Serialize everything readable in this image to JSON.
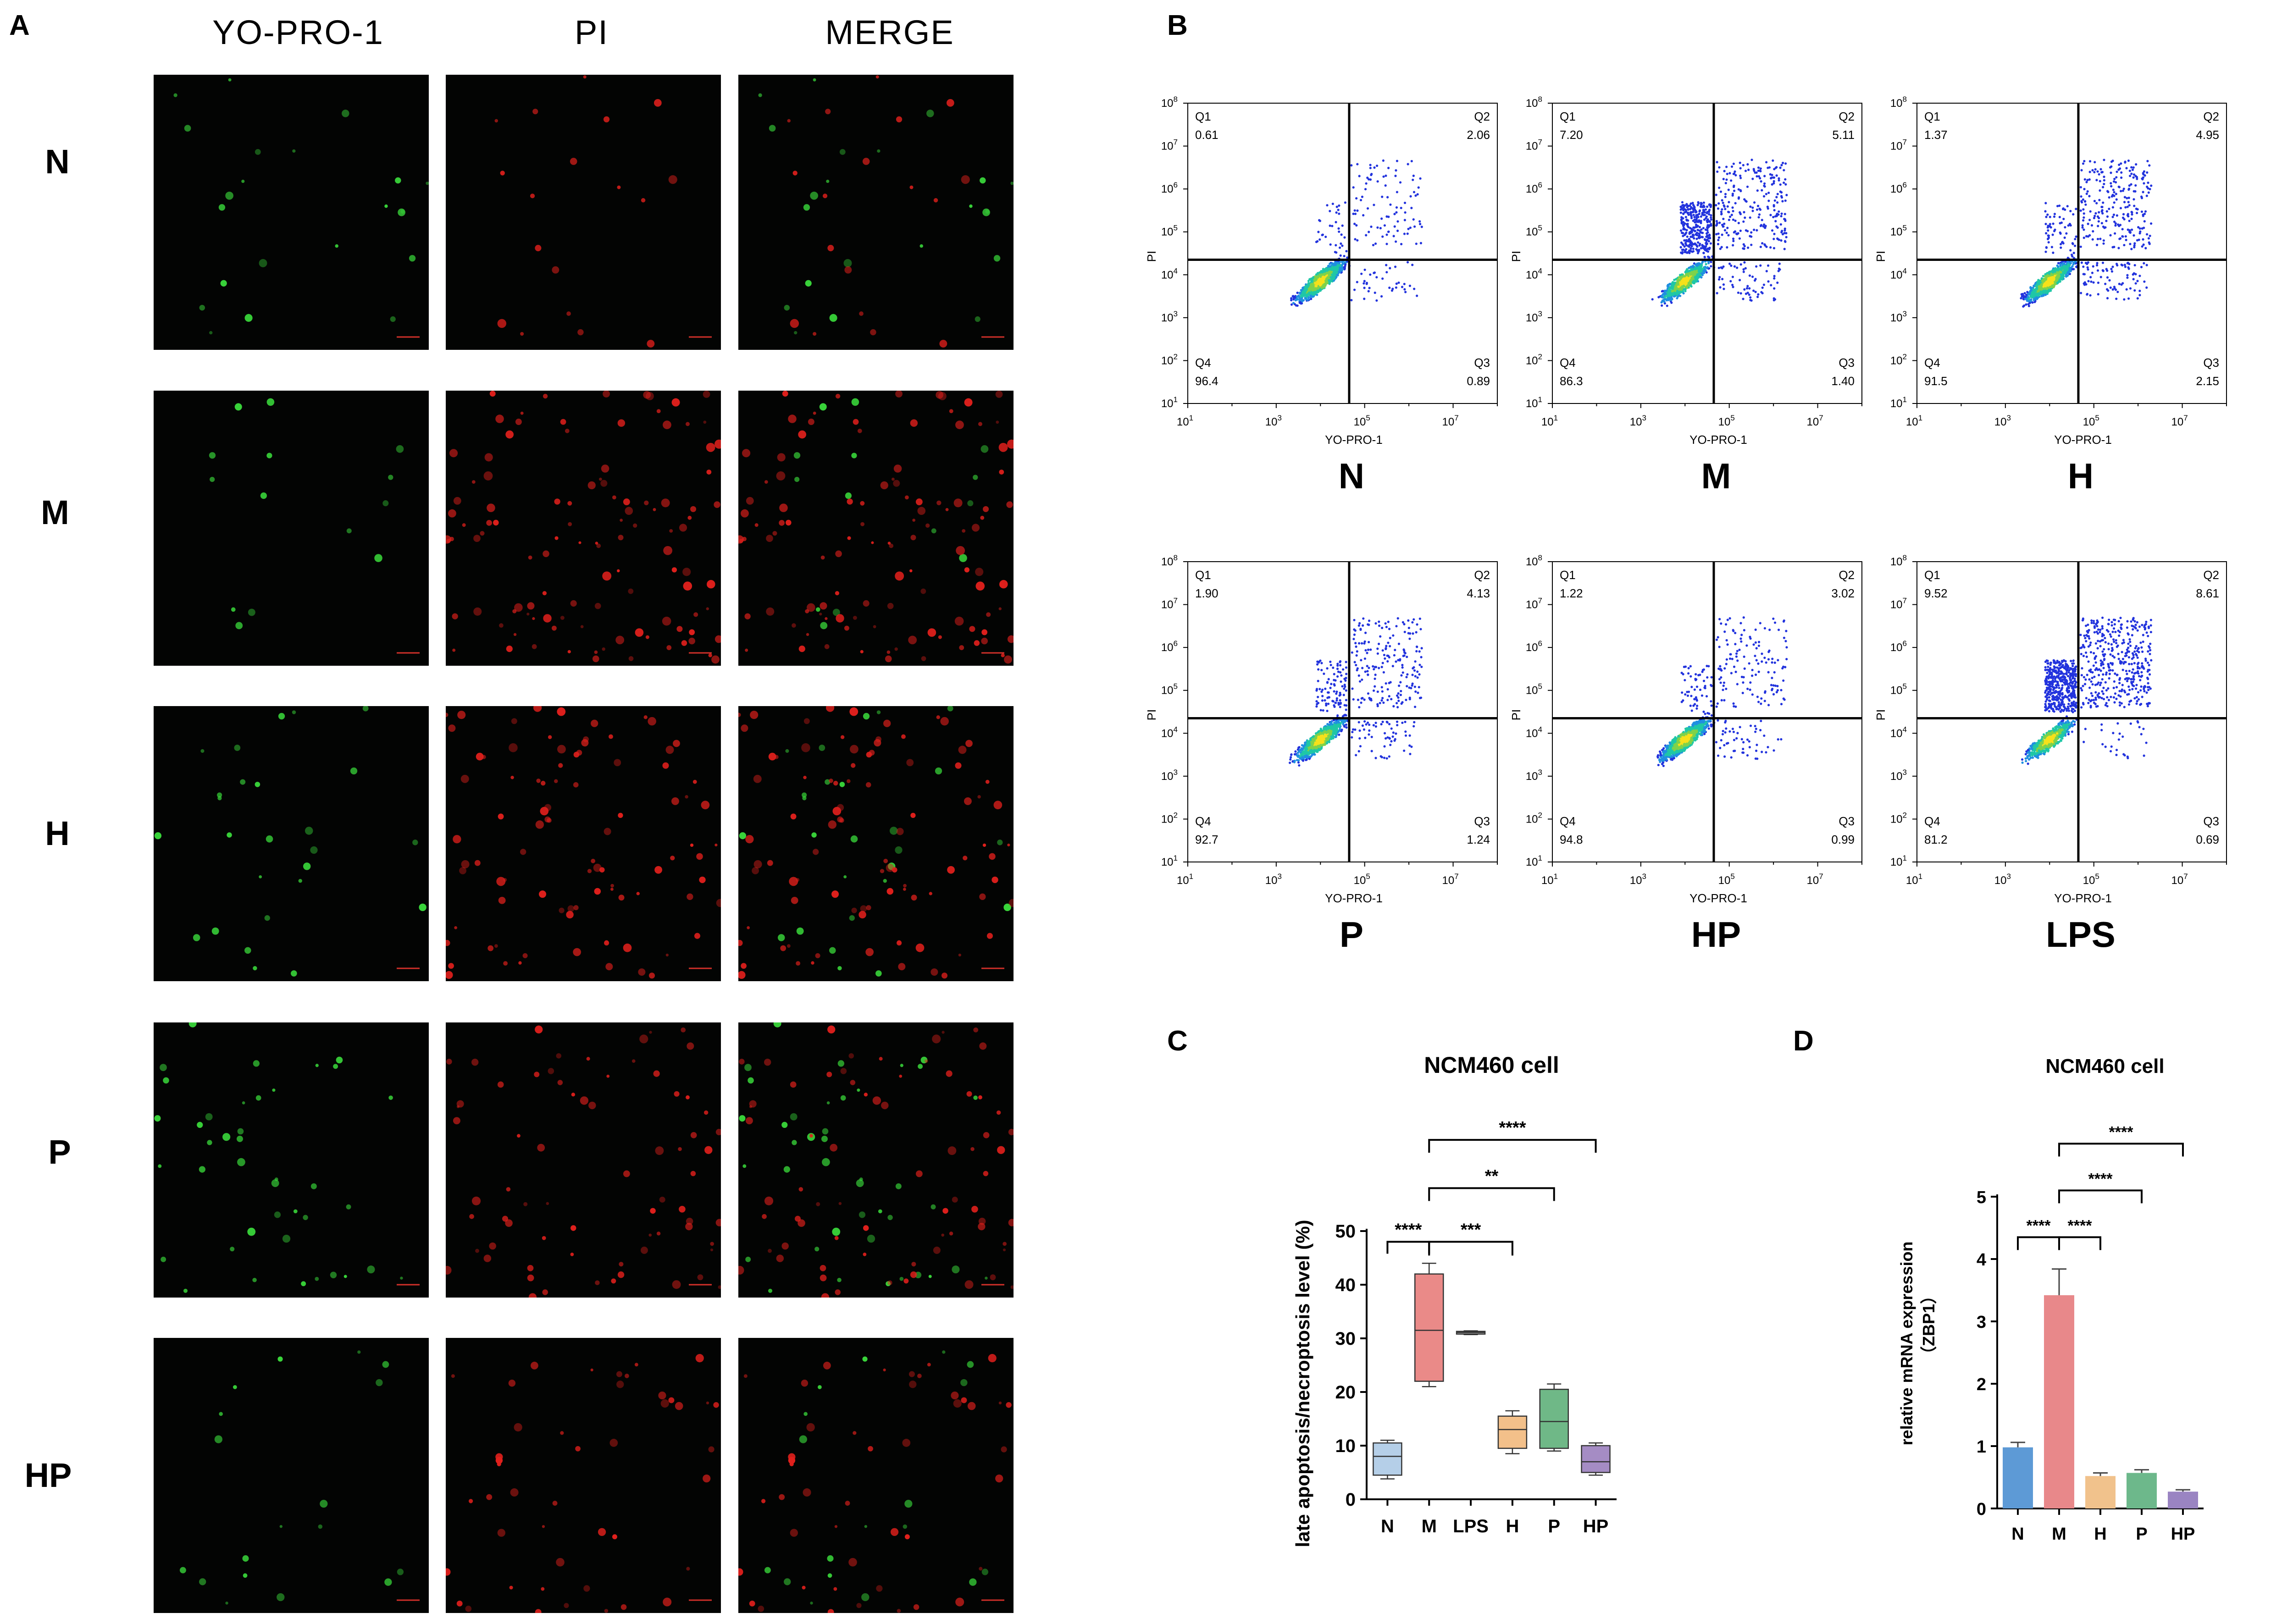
{
  "panels": {
    "A": "A",
    "B": "B",
    "C": "C",
    "D": "D"
  },
  "panel_a": {
    "columns": [
      "YO-PRO-1",
      "PI",
      "MERGE"
    ],
    "rows": [
      "N",
      "M",
      "H",
      "P",
      "HP"
    ],
    "colors": {
      "green": "#39d63a",
      "red": "#e0201c",
      "background": "#030403",
      "scale_bar": "#d2302a"
    }
  },
  "panel_b": {
    "x_axis_label": "YO-PRO-1",
    "y_axis_label": "PI",
    "plots": [
      {
        "group": "N",
        "Q1": "0.61",
        "Q2": "2.06",
        "Q3": "0.89",
        "Q4": "96.4"
      },
      {
        "group": "M",
        "Q1": "7.20",
        "Q2": "5.11",
        "Q3": "1.40",
        "Q4": "86.3"
      },
      {
        "group": "H",
        "Q1": "1.37",
        "Q2": "4.95",
        "Q3": "2.15",
        "Q4": "91.5"
      },
      {
        "group": "P",
        "Q1": "1.90",
        "Q2": "4.13",
        "Q3": "1.24",
        "Q4": "92.7"
      },
      {
        "group": "HP",
        "Q1": "1.22",
        "Q2": "3.02",
        "Q3": "0.99",
        "Q4": "94.8"
      },
      {
        "group": "LPS",
        "Q1": "9.52",
        "Q2": "8.61",
        "Q3": "0.69",
        "Q4": "81.2"
      }
    ],
    "quadrant_names": [
      "Q1",
      "Q2",
      "Q3",
      "Q4"
    ]
  },
  "chart_data": [
    {
      "type": "scatter",
      "panel": "B",
      "description_units": "log10 fluorescence, axes 10^1 to 10^8",
      "x_ticks": [
        "10^1",
        "10^3",
        "10^5",
        "10^7"
      ],
      "y_ticks": [
        "10^1",
        "10^2",
        "10^3",
        "10^4",
        "10^5",
        "10^6",
        "10^7",
        "10^8"
      ],
      "xlabel": "YO-PRO-1",
      "ylabel": "PI",
      "xlim": [
        1,
        8
      ],
      "ylim": [
        1,
        8
      ],
      "gate_x": 4.65,
      "gate_y": 4.35,
      "quadrants": {
        "N": [
          0.61,
          2.06,
          0.89,
          96.4
        ],
        "M": [
          7.2,
          5.11,
          1.4,
          86.3
        ],
        "H": [
          1.37,
          4.95,
          2.15,
          91.5
        ],
        "P": [
          1.9,
          4.13,
          1.24,
          92.7
        ],
        "HP": [
          1.22,
          3.02,
          0.99,
          94.8
        ],
        "LPS": [
          9.52,
          8.61,
          0.69,
          81.2
        ]
      }
    },
    {
      "type": "box",
      "panel": "C",
      "title": "NCM460 cell",
      "ylabel": "late apoptosis/necroptosis level (%)",
      "ylim": [
        0,
        50
      ],
      "yticks": [
        0,
        10,
        20,
        30,
        40,
        50
      ],
      "categories": [
        "N",
        "M",
        "LPS",
        "H",
        "P",
        "HP"
      ],
      "colors": [
        "#b5cfe8",
        "#ea8a88",
        "#b6b6b6",
        "#f3c08a",
        "#6fb887",
        "#a58cc4"
      ],
      "boxes": [
        {
          "min": 3.8,
          "q1": 4.5,
          "median": 8,
          "q3": 10.5,
          "max": 11
        },
        {
          "min": 21,
          "q1": 22,
          "median": 31.5,
          "q3": 42,
          "max": 44
        },
        {
          "min": 30.7,
          "q1": 30.8,
          "median": 31.1,
          "q3": 31.3,
          "max": 31.4
        },
        {
          "min": 8.5,
          "q1": 9.5,
          "median": 13,
          "q3": 15.5,
          "max": 16.5
        },
        {
          "min": 9,
          "q1": 9.5,
          "median": 14.5,
          "q3": 20.5,
          "max": 21.5
        },
        {
          "min": 4.5,
          "q1": 5,
          "median": 7,
          "q3": 10,
          "max": 10.5
        }
      ],
      "significance": [
        {
          "from": "N",
          "to": "M",
          "label": "****"
        },
        {
          "from": "M",
          "to": "H",
          "label": "***"
        },
        {
          "from": "M",
          "to": "P",
          "label": "**"
        },
        {
          "from": "M",
          "to": "HP",
          "label": "****"
        }
      ]
    },
    {
      "type": "bar",
      "panel": "D",
      "title": "NCM460 cell",
      "ylabel": "relative mRNA expression",
      "ylabel2": "（ZBP1）",
      "ylim": [
        0,
        5
      ],
      "yticks": [
        0,
        1,
        2,
        3,
        4,
        5
      ],
      "categories": [
        "N",
        "M",
        "H",
        "P",
        "HP"
      ],
      "values": [
        0.98,
        3.42,
        0.52,
        0.57,
        0.27
      ],
      "errors": [
        0.08,
        0.42,
        0.05,
        0.05,
        0.03
      ],
      "colors": [
        "#5d9ad6",
        "#e8888a",
        "#f1c28c",
        "#6db88b",
        "#9a84c2"
      ],
      "significance": [
        {
          "from": "N",
          "to": "M",
          "label": "****"
        },
        {
          "from": "M",
          "to": "H",
          "label": "****"
        },
        {
          "from": "M",
          "to": "P",
          "label": "****"
        },
        {
          "from": "M",
          "to": "HP",
          "label": "****"
        }
      ]
    }
  ]
}
